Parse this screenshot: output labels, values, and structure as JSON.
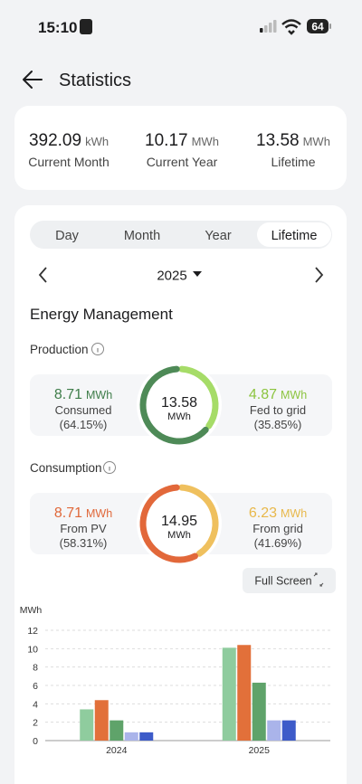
{
  "status_bar": {
    "time": "15:10",
    "battery": "64"
  },
  "header": {
    "title": "Statistics"
  },
  "summary": [
    {
      "value": "392.09",
      "unit": "kWh",
      "label": "Current Month"
    },
    {
      "value": "10.17",
      "unit": "MWh",
      "label": "Current Year"
    },
    {
      "value": "13.58",
      "unit": "MWh",
      "label": "Lifetime"
    }
  ],
  "tabs": [
    {
      "label": "Day",
      "selected": false
    },
    {
      "label": "Month",
      "selected": false
    },
    {
      "label": "Year",
      "selected": false
    },
    {
      "label": "Lifetime",
      "selected": true
    }
  ],
  "year_selector": "2025",
  "section_title": "Energy Management",
  "production": {
    "label": "Production",
    "total": 13.58,
    "total_unit": "MWh",
    "left": {
      "value": 8.71,
      "unit": "MWh",
      "label": "Consumed",
      "percent": "(64.15%)",
      "color": "#4e8a57"
    },
    "right": {
      "value": 4.87,
      "unit": "MWh",
      "label": "Fed to grid",
      "percent": "(35.85%)",
      "color": "#a6dc68"
    }
  },
  "consumption": {
    "label": "Consumption",
    "total": 14.95,
    "total_unit": "MWh",
    "left": {
      "value": 8.71,
      "unit": "MWh",
      "label": "From PV",
      "percent": "(58.31%)",
      "color": "#e2683a"
    },
    "right": {
      "value": 6.23,
      "unit": "MWh",
      "label": "From grid",
      "percent": "(41.69%)",
      "color": "#efc05e"
    }
  },
  "full_screen_button": "Full Screen",
  "chart_data": {
    "type": "bar",
    "y_label": "MWh",
    "categories": [
      "2024",
      "2025"
    ],
    "series": [
      {
        "color": "#8fcc9e",
        "values": [
          3.4,
          10.1
        ]
      },
      {
        "color": "#e2703a",
        "values": [
          4.4,
          10.4
        ]
      },
      {
        "color": "#5fa36a",
        "values": [
          2.2,
          6.3
        ]
      },
      {
        "color": "#aab4ea",
        "values": [
          0.9,
          2.2
        ]
      },
      {
        "color": "#3d5bc9",
        "values": [
          0.9,
          2.2
        ]
      }
    ],
    "ylim": [
      0,
      12
    ],
    "yticks": [
      0,
      2,
      4,
      6,
      8,
      10,
      12
    ],
    "grid": true
  }
}
